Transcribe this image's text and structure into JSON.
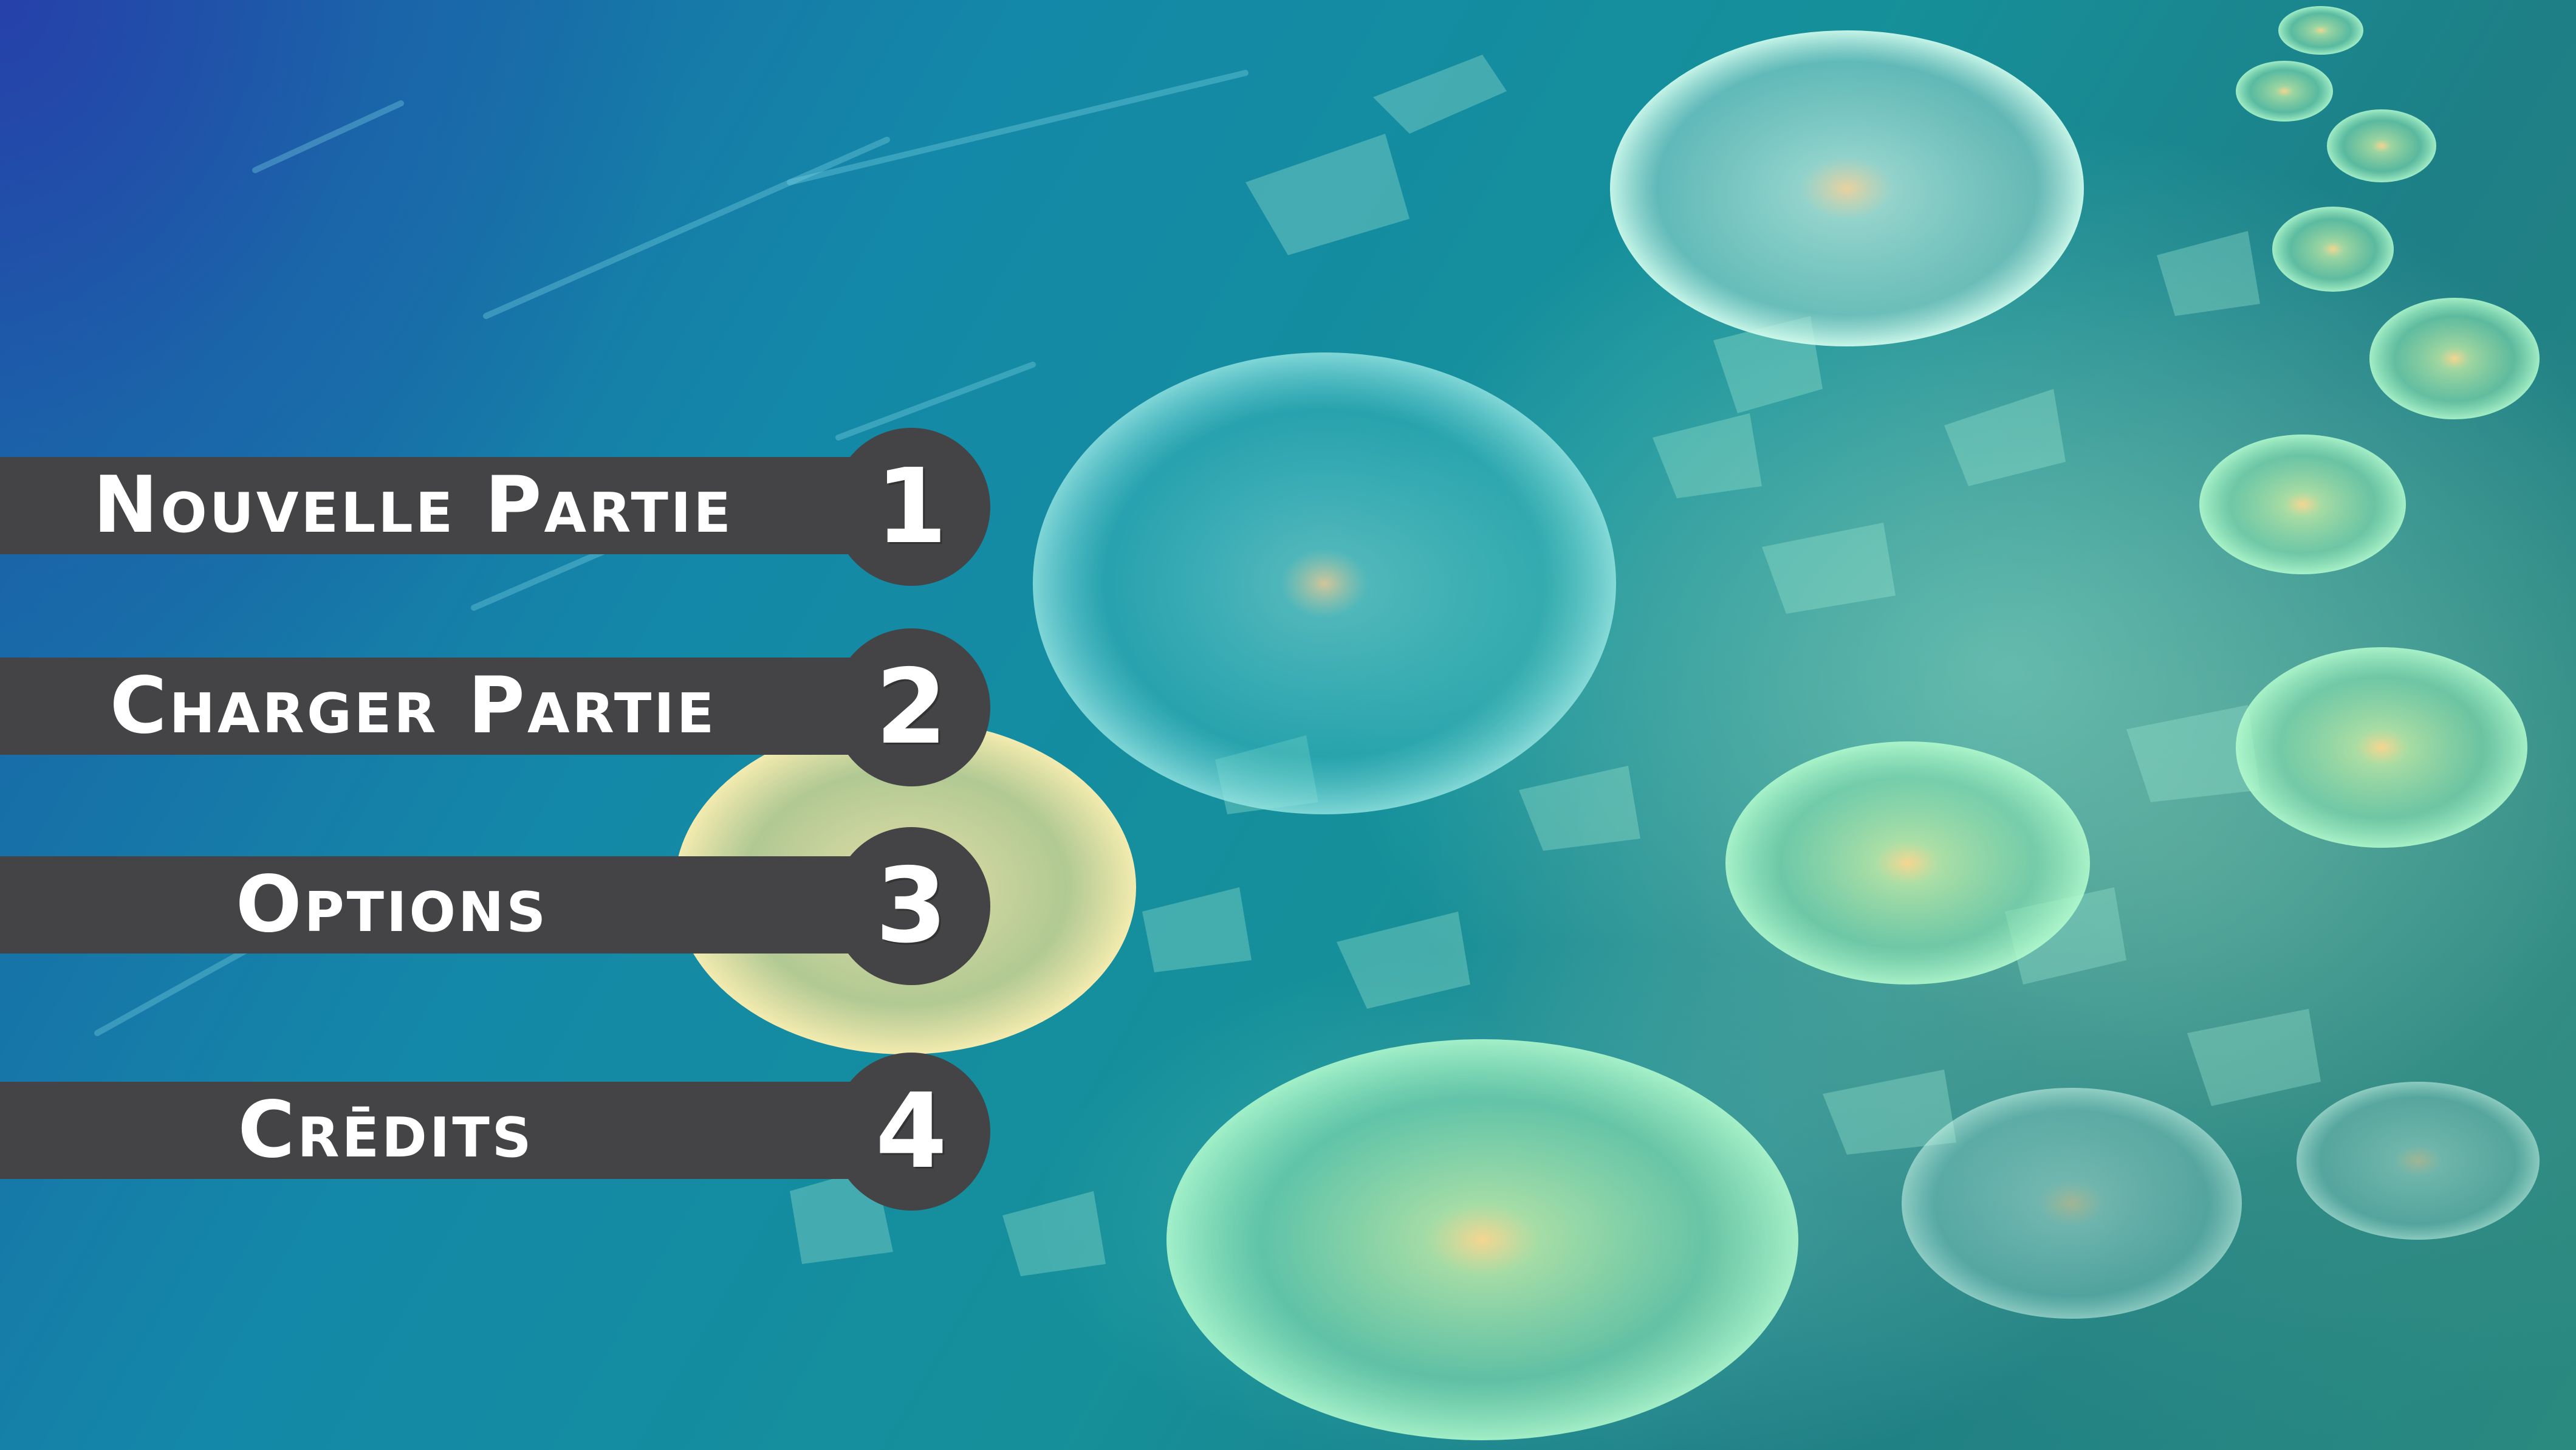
{
  "menu": {
    "items": [
      {
        "label": "Nouvelle Partie",
        "number": "1"
      },
      {
        "label": "Charger Partie",
        "number": "2"
      },
      {
        "label": "Options",
        "number": "3"
      },
      {
        "label": "Crēdits",
        "number": "4"
      }
    ]
  },
  "colors": {
    "bar": "#444446",
    "text": "#ffffff",
    "bubble_green": "#a8f0b8",
    "bubble_yellow": "#f2e4a0"
  }
}
